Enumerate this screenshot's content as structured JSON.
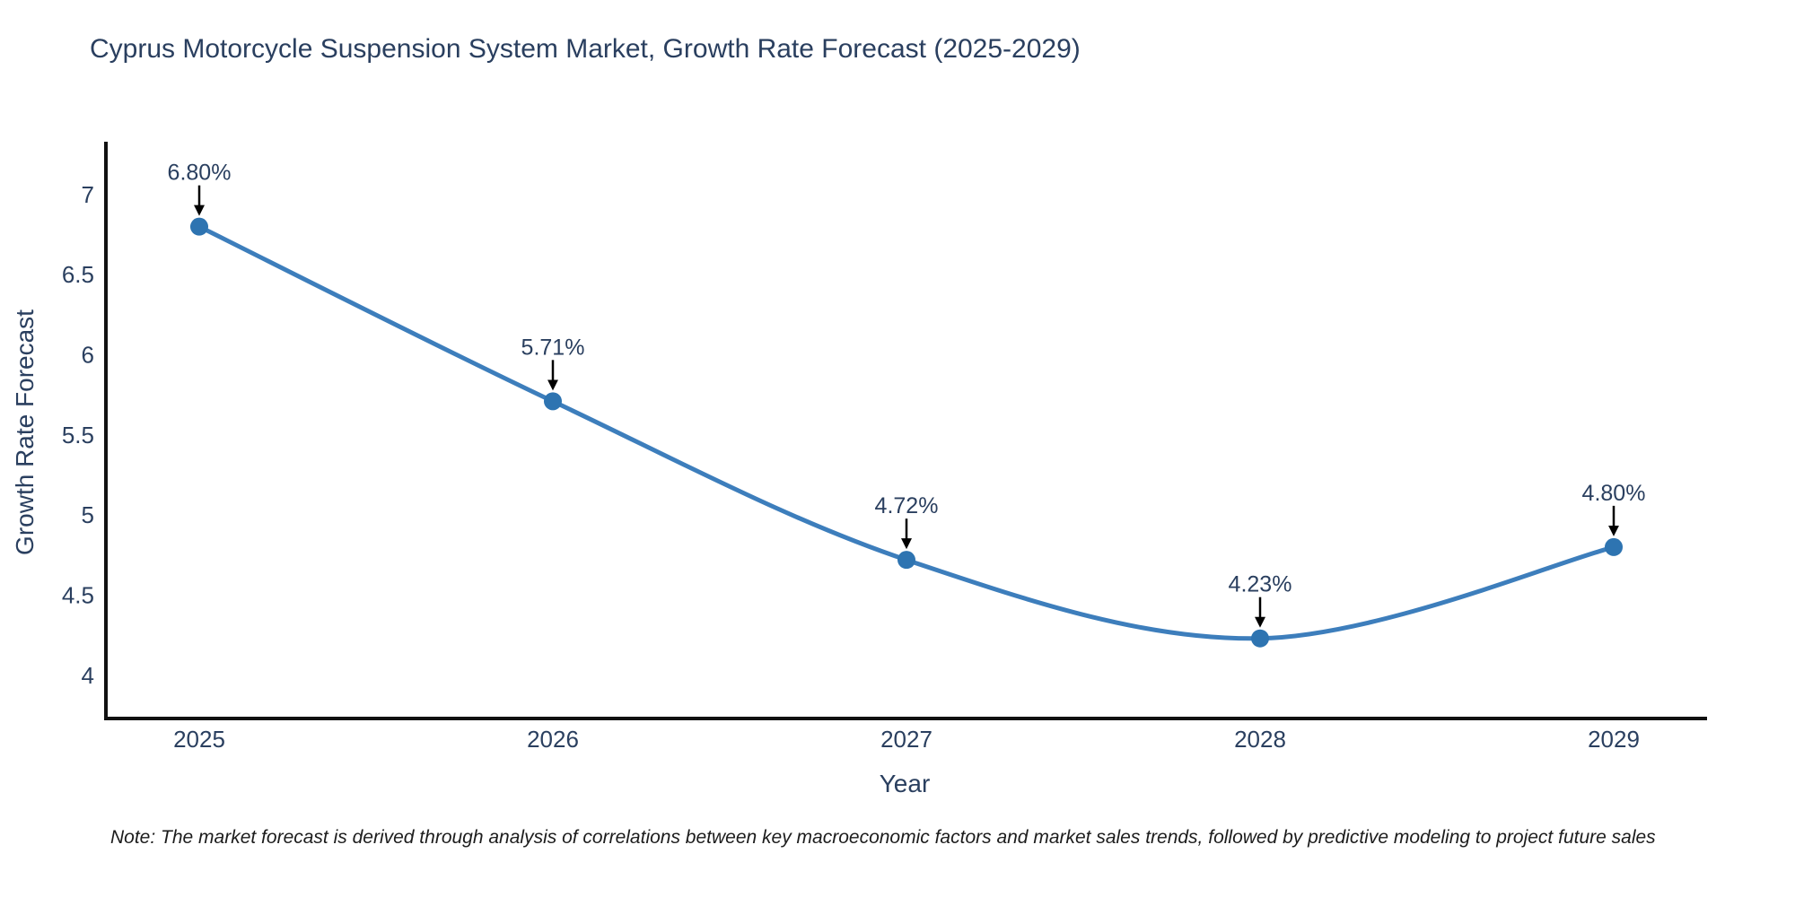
{
  "title": "Cyprus Motorcycle Suspension System Market, Growth Rate Forecast (2025-2029)",
  "note": "Note: The market forecast is derived through analysis of correlations between key macroeconomic factors and market sales trends, followed by predictive modeling to project future sales",
  "chart_data": {
    "type": "line",
    "title": "Cyprus Motorcycle Suspension System Market, Growth Rate Forecast (2025-2029)",
    "xlabel": "Year",
    "ylabel": "Growth Rate Forecast",
    "categories": [
      "2025",
      "2026",
      "2027",
      "2028",
      "2029"
    ],
    "series": [
      {
        "name": "Growth Rate Forecast",
        "values": [
          6.8,
          5.71,
          4.72,
          4.23,
          4.8
        ]
      }
    ],
    "point_labels": [
      "6.80%",
      "5.71%",
      "4.72%",
      "4.23%",
      "4.80%"
    ],
    "y_ticks": [
      7,
      6.5,
      6,
      5.5,
      5,
      4.5,
      4
    ],
    "y_tick_labels": [
      "7",
      "6.5",
      "6",
      "5.5",
      "5",
      "4.5",
      "4"
    ],
    "ylim": [
      3.73,
      7.33
    ],
    "grid": false,
    "legend_position": "none",
    "line_shape": "spline",
    "colors": {
      "line": "#3d7ebc",
      "marker": "#2e74b1",
      "axis": "#111111",
      "text": "#2a3f5f",
      "annotation_arrow": "#000000",
      "background": "#ffffff"
    }
  }
}
